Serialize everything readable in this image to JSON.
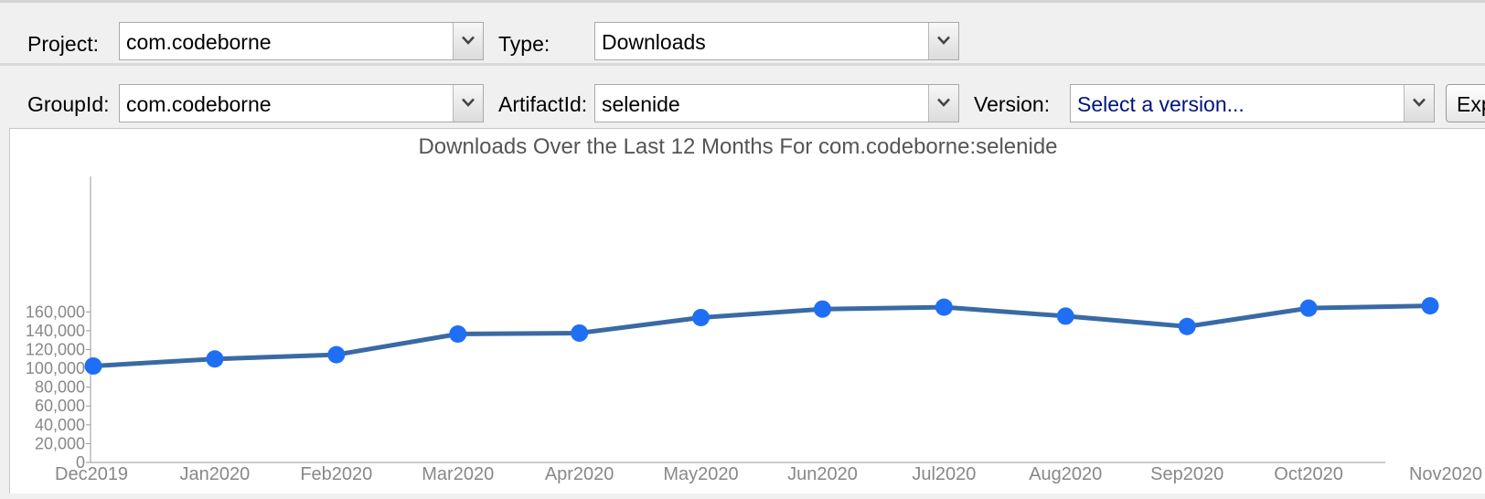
{
  "toolbar": {
    "project_label": "Project:",
    "project_value": "com.codeborne",
    "type_label": "Type:",
    "type_value": "Downloads",
    "groupid_label": "GroupId:",
    "groupid_value": "com.codeborne",
    "artifactid_label": "ArtifactId:",
    "artifactid_value": "selenide",
    "version_label": "Version:",
    "version_placeholder": "Select a version...",
    "export_label": "Export"
  },
  "chart_data": {
    "type": "line",
    "title": "Downloads Over the Last 12 Months For com.codeborne:selenide",
    "xlabel": "",
    "ylabel": "",
    "categories": [
      "Dec2019",
      "Jan2020",
      "Feb2020",
      "Mar2020",
      "Apr2020",
      "May2020",
      "Jun2020",
      "Jul2020",
      "Aug2020",
      "Sep2020",
      "Oct2020",
      "Nov2020"
    ],
    "series": [
      {
        "values": [
          102500,
          110000,
          114500,
          136500,
          137500,
          154000,
          163000,
          165000,
          155500,
          144500,
          164000,
          166500
        ]
      }
    ],
    "ylim": [
      0,
      170000
    ],
    "yticks": [
      0,
      20000,
      40000,
      60000,
      80000,
      100000,
      120000,
      140000,
      160000
    ],
    "ytick_labels": [
      "0",
      "20,000",
      "40,000",
      "60,000",
      "80,000",
      "100,000",
      "120,000",
      "140,000",
      "160,000"
    ],
    "grid": false,
    "line_color": "#3a6aa5",
    "marker_color": "#1f6ff5"
  }
}
